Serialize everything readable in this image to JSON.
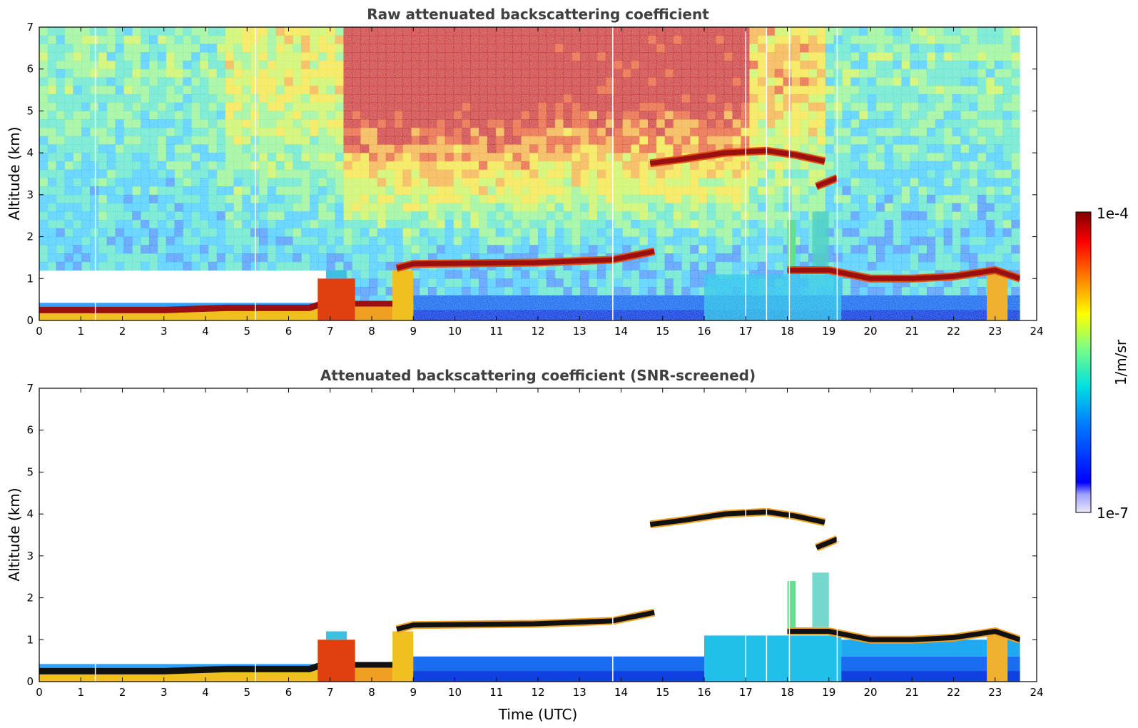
{
  "chart_data": [
    {
      "type": "heatmap",
      "title": "Raw attenuated backscattering coefficient",
      "xlabel": "",
      "ylabel": "Altitude (km)",
      "xlim": [
        0,
        24
      ],
      "ylim": [
        0,
        7
      ],
      "xticks": [
        "0",
        "1",
        "2",
        "3",
        "4",
        "5",
        "6",
        "7",
        "8",
        "9",
        "10",
        "11",
        "12",
        "13",
        "14",
        "15",
        "16",
        "17",
        "18",
        "19",
        "20",
        "21",
        "22",
        "23",
        "24"
      ],
      "yticks": [
        "0",
        "1",
        "2",
        "3",
        "4",
        "5",
        "6",
        "7"
      ],
      "data_end_hour": 23.6,
      "features": [
        {
          "kind": "boundary_layer_top",
          "points": [
            [
              0,
              0.25
            ],
            [
              3,
              0.25
            ],
            [
              4.5,
              0.3
            ],
            [
              6.5,
              0.3
            ],
            [
              6.8,
              0.4
            ]
          ]
        },
        {
          "kind": "cloud_layer",
          "points": [
            [
              8.6,
              1.25
            ],
            [
              9,
              1.35
            ],
            [
              11.9,
              1.38
            ],
            [
              12.5,
              1.4
            ],
            [
              13.8,
              1.45
            ],
            [
              14.3,
              1.55
            ],
            [
              14.8,
              1.65
            ]
          ]
        },
        {
          "kind": "cloud_layer",
          "points": [
            [
              14.7,
              3.75
            ],
            [
              15.5,
              3.85
            ],
            [
              16.5,
              4.0
            ],
            [
              17.5,
              4.05
            ],
            [
              18.2,
              3.95
            ],
            [
              18.9,
              3.8
            ]
          ]
        },
        {
          "kind": "cloud_layer",
          "points": [
            [
              18.7,
              3.2
            ],
            [
              19.2,
              3.4
            ]
          ]
        },
        {
          "kind": "cloud_layer",
          "points": [
            [
              18,
              1.2
            ],
            [
              19,
              1.2
            ],
            [
              20,
              1.0
            ],
            [
              21,
              1.0
            ],
            [
              22,
              1.05
            ],
            [
              23,
              1.2
            ],
            [
              23.6,
              1.0
            ]
          ]
        }
      ]
    },
    {
      "type": "heatmap",
      "title": "Attenuated backscattering coefficient (SNR-screened)",
      "xlabel": "Time (UTC)",
      "ylabel": "Altitude (km)",
      "xlim": [
        0,
        24
      ],
      "ylim": [
        0,
        7
      ],
      "xticks": [
        "0",
        "1",
        "2",
        "3",
        "4",
        "5",
        "6",
        "7",
        "8",
        "9",
        "10",
        "11",
        "12",
        "13",
        "14",
        "15",
        "16",
        "17",
        "18",
        "19",
        "20",
        "21",
        "22",
        "23",
        "24"
      ],
      "yticks": [
        "0",
        "1",
        "2",
        "3",
        "4",
        "5",
        "6",
        "7"
      ],
      "data_end_hour": 23.6
    }
  ],
  "colorbar": {
    "max_label": "1e-4",
    "min_label": "1e-7",
    "unit_label": "1/m/sr",
    "colormap": "jet",
    "colors": [
      "#e8e8f8",
      "#0000ff",
      "#0080ff",
      "#00e0e0",
      "#80ff80",
      "#ffff00",
      "#ff8000",
      "#ff0000",
      "#800000"
    ]
  }
}
